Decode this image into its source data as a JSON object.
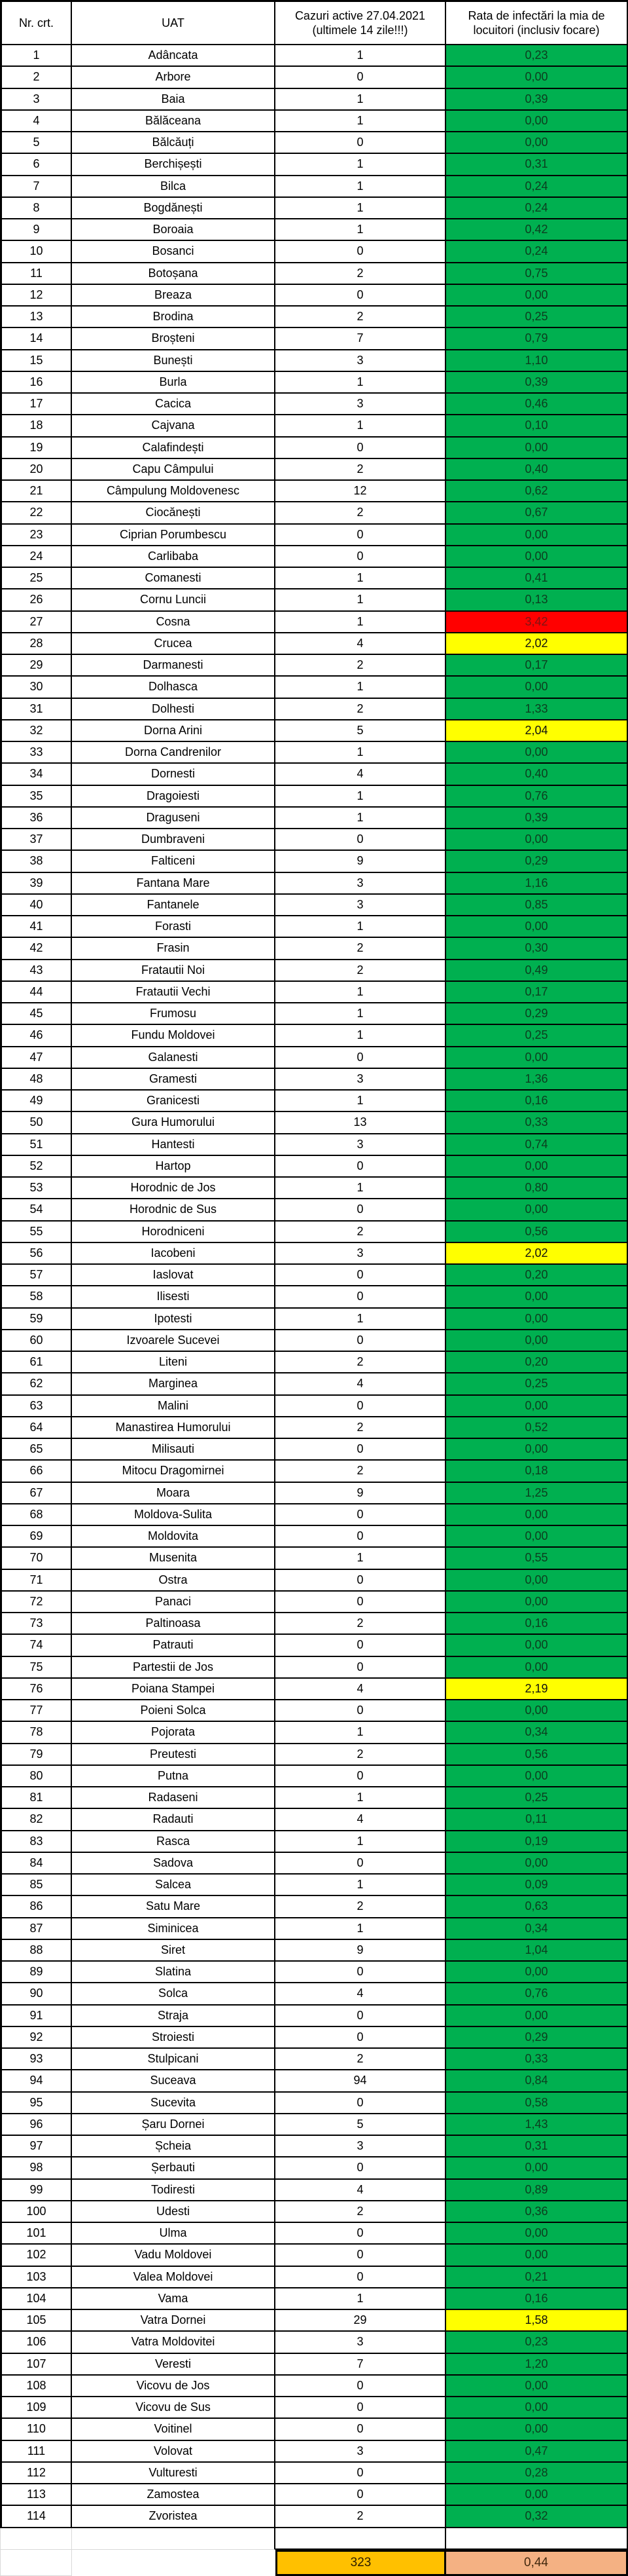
{
  "table": {
    "headers": {
      "nr": "Nr. crt.",
      "uat": "UAT",
      "cases": "Cazuri active 27.04.2021 (ultimele 14 zile!!!)",
      "rate": "Rata de infectări la mia de locuitori (inclusiv focare)"
    },
    "footer": {
      "total_cases": "323",
      "total_rate": "0,44"
    }
  },
  "colors": {
    "green_bg": "#00B050",
    "green_text": "#0c3d1f",
    "yellow_bg": "#FFFF00",
    "yellow_text": "#111111",
    "red_bg": "#FF0000",
    "red_text": "#7d1414",
    "orange_bg": "#FFC000",
    "orange_text": "#2b1d00",
    "salmon_bg": "#F4B183",
    "salmon_text": "#42280e"
  },
  "rows": [
    {
      "nr": "1",
      "uat": "Adâncata",
      "cases": "1",
      "rate": "0,23",
      "status": "green"
    },
    {
      "nr": "2",
      "uat": "Arbore",
      "cases": "0",
      "rate": "0,00",
      "status": "green"
    },
    {
      "nr": "3",
      "uat": "Baia",
      "cases": "1",
      "rate": "0,39",
      "status": "green"
    },
    {
      "nr": "4",
      "uat": "Bălăceana",
      "cases": "1",
      "rate": "0,00",
      "status": "green"
    },
    {
      "nr": "5",
      "uat": "Bălcăuți",
      "cases": "0",
      "rate": "0,00",
      "status": "green"
    },
    {
      "nr": "6",
      "uat": "Berchișești",
      "cases": "1",
      "rate": "0,31",
      "status": "green"
    },
    {
      "nr": "7",
      "uat": "Bilca",
      "cases": "1",
      "rate": "0,24",
      "status": "green"
    },
    {
      "nr": "8",
      "uat": "Bogdănești",
      "cases": "1",
      "rate": "0,24",
      "status": "green"
    },
    {
      "nr": "9",
      "uat": "Boroaia",
      "cases": "1",
      "rate": "0,42",
      "status": "green"
    },
    {
      "nr": "10",
      "uat": "Bosanci",
      "cases": "0",
      "rate": "0,24",
      "status": "green"
    },
    {
      "nr": "11",
      "uat": "Botoșana",
      "cases": "2",
      "rate": "0,75",
      "status": "green"
    },
    {
      "nr": "12",
      "uat": "Breaza",
      "cases": "0",
      "rate": "0,00",
      "status": "green"
    },
    {
      "nr": "13",
      "uat": "Brodina",
      "cases": "2",
      "rate": "0,25",
      "status": "green"
    },
    {
      "nr": "14",
      "uat": "Broșteni",
      "cases": "7",
      "rate": "0,79",
      "status": "green"
    },
    {
      "nr": "15",
      "uat": "Bunești",
      "cases": "3",
      "rate": "1,10",
      "status": "green"
    },
    {
      "nr": "16",
      "uat": "Burla",
      "cases": "1",
      "rate": "0,39",
      "status": "green"
    },
    {
      "nr": "17",
      "uat": "Cacica",
      "cases": "3",
      "rate": "0,46",
      "status": "green"
    },
    {
      "nr": "18",
      "uat": "Cajvana",
      "cases": "1",
      "rate": "0,10",
      "status": "green"
    },
    {
      "nr": "19",
      "uat": "Calafindești",
      "cases": "0",
      "rate": "0,00",
      "status": "green"
    },
    {
      "nr": "20",
      "uat": "Capu Câmpului",
      "cases": "2",
      "rate": "0,40",
      "status": "green"
    },
    {
      "nr": "21",
      "uat": "Câmpulung Moldovenesc",
      "cases": "12",
      "rate": "0,62",
      "status": "green"
    },
    {
      "nr": "22",
      "uat": "Ciocănești",
      "cases": "2",
      "rate": "0,67",
      "status": "green"
    },
    {
      "nr": "23",
      "uat": "Ciprian Porumbescu",
      "cases": "0",
      "rate": "0,00",
      "status": "green"
    },
    {
      "nr": "24",
      "uat": "Carlibaba",
      "cases": "0",
      "rate": "0,00",
      "status": "green"
    },
    {
      "nr": "25",
      "uat": "Comanesti",
      "cases": "1",
      "rate": "0,41",
      "status": "green"
    },
    {
      "nr": "26",
      "uat": "Cornu Luncii",
      "cases": "1",
      "rate": "0,13",
      "status": "green"
    },
    {
      "nr": "27",
      "uat": "Cosna",
      "cases": "1",
      "rate": "3,42",
      "status": "red"
    },
    {
      "nr": "28",
      "uat": "Crucea",
      "cases": "4",
      "rate": "2,02",
      "status": "yellow"
    },
    {
      "nr": "29",
      "uat": "Darmanesti",
      "cases": "2",
      "rate": "0,17",
      "status": "green"
    },
    {
      "nr": "30",
      "uat": "Dolhasca",
      "cases": "1",
      "rate": "0,00",
      "status": "green"
    },
    {
      "nr": "31",
      "uat": "Dolhesti",
      "cases": "2",
      "rate": "1,33",
      "status": "green"
    },
    {
      "nr": "32",
      "uat": "Dorna Arini",
      "cases": "5",
      "rate": "2,04",
      "status": "yellow"
    },
    {
      "nr": "33",
      "uat": "Dorna Candrenilor",
      "cases": "1",
      "rate": "0,00",
      "status": "green"
    },
    {
      "nr": "34",
      "uat": "Dornesti",
      "cases": "4",
      "rate": "0,40",
      "status": "green"
    },
    {
      "nr": "35",
      "uat": "Dragoiesti",
      "cases": "1",
      "rate": "0,76",
      "status": "green"
    },
    {
      "nr": "36",
      "uat": "Draguseni",
      "cases": "1",
      "rate": "0,39",
      "status": "green"
    },
    {
      "nr": "37",
      "uat": "Dumbraveni",
      "cases": "0",
      "rate": "0,00",
      "status": "green"
    },
    {
      "nr": "38",
      "uat": "Falticeni",
      "cases": "9",
      "rate": "0,29",
      "status": "green"
    },
    {
      "nr": "39",
      "uat": "Fantana Mare",
      "cases": "3",
      "rate": "1,16",
      "status": "green"
    },
    {
      "nr": "40",
      "uat": "Fantanele",
      "cases": "3",
      "rate": "0,85",
      "status": "green"
    },
    {
      "nr": "41",
      "uat": "Forasti",
      "cases": "1",
      "rate": "0,00",
      "status": "green"
    },
    {
      "nr": "42",
      "uat": "Frasin",
      "cases": "2",
      "rate": "0,30",
      "status": "green"
    },
    {
      "nr": "43",
      "uat": "Fratautii Noi",
      "cases": "2",
      "rate": "0,49",
      "status": "green"
    },
    {
      "nr": "44",
      "uat": "Fratautii Vechi",
      "cases": "1",
      "rate": "0,17",
      "status": "green"
    },
    {
      "nr": "45",
      "uat": "Frumosu",
      "cases": "1",
      "rate": "0,29",
      "status": "green"
    },
    {
      "nr": "46",
      "uat": "Fundu Moldovei",
      "cases": "1",
      "rate": "0,25",
      "status": "green"
    },
    {
      "nr": "47",
      "uat": "Galanesti",
      "cases": "0",
      "rate": "0,00",
      "status": "green"
    },
    {
      "nr": "48",
      "uat": "Gramesti",
      "cases": "3",
      "rate": "1,36",
      "status": "green"
    },
    {
      "nr": "49",
      "uat": "Granicesti",
      "cases": "1",
      "rate": "0,16",
      "status": "green"
    },
    {
      "nr": "50",
      "uat": "Gura Humorului",
      "cases": "13",
      "rate": "0,33",
      "status": "green"
    },
    {
      "nr": "51",
      "uat": "Hantesti",
      "cases": "3",
      "rate": "0,74",
      "status": "green"
    },
    {
      "nr": "52",
      "uat": "Hartop",
      "cases": "0",
      "rate": "0,00",
      "status": "green"
    },
    {
      "nr": "53",
      "uat": "Horodnic de Jos",
      "cases": "1",
      "rate": "0,80",
      "status": "green"
    },
    {
      "nr": "54",
      "uat": "Horodnic de Sus",
      "cases": "0",
      "rate": "0,00",
      "status": "green"
    },
    {
      "nr": "55",
      "uat": "Horodniceni",
      "cases": "2",
      "rate": "0,56",
      "status": "green"
    },
    {
      "nr": "56",
      "uat": "Iacobeni",
      "cases": "3",
      "rate": "2,02",
      "status": "yellow"
    },
    {
      "nr": "57",
      "uat": "Iaslovat",
      "cases": "0",
      "rate": "0,20",
      "status": "green"
    },
    {
      "nr": "58",
      "uat": "Ilisesti",
      "cases": "0",
      "rate": "0,00",
      "status": "green"
    },
    {
      "nr": "59",
      "uat": "Ipotesti",
      "cases": "1",
      "rate": "0,00",
      "status": "green"
    },
    {
      "nr": "60",
      "uat": "Izvoarele Sucevei",
      "cases": "0",
      "rate": "0,00",
      "status": "green"
    },
    {
      "nr": "61",
      "uat": "Liteni",
      "cases": "2",
      "rate": "0,20",
      "status": "green"
    },
    {
      "nr": "62",
      "uat": "Marginea",
      "cases": "4",
      "rate": "0,25",
      "status": "green"
    },
    {
      "nr": "63",
      "uat": "Malini",
      "cases": "0",
      "rate": "0,00",
      "status": "green"
    },
    {
      "nr": "64",
      "uat": "Manastirea Humorului",
      "cases": "2",
      "rate": "0,52",
      "status": "green"
    },
    {
      "nr": "65",
      "uat": "Milisauti",
      "cases": "0",
      "rate": "0,00",
      "status": "green"
    },
    {
      "nr": "66",
      "uat": "Mitocu Dragomirnei",
      "cases": "2",
      "rate": "0,18",
      "status": "green"
    },
    {
      "nr": "67",
      "uat": "Moara",
      "cases": "9",
      "rate": "1,25",
      "status": "green"
    },
    {
      "nr": "68",
      "uat": "Moldova-Sulita",
      "cases": "0",
      "rate": "0,00",
      "status": "green"
    },
    {
      "nr": "69",
      "uat": "Moldovita",
      "cases": "0",
      "rate": "0,00",
      "status": "green"
    },
    {
      "nr": "70",
      "uat": "Musenita",
      "cases": "1",
      "rate": "0,55",
      "status": "green"
    },
    {
      "nr": "71",
      "uat": "Ostra",
      "cases": "0",
      "rate": "0,00",
      "status": "green"
    },
    {
      "nr": "72",
      "uat": "Panaci",
      "cases": "0",
      "rate": "0,00",
      "status": "green"
    },
    {
      "nr": "73",
      "uat": "Paltinoasa",
      "cases": "2",
      "rate": "0,16",
      "status": "green"
    },
    {
      "nr": "74",
      "uat": "Patrauti",
      "cases": "0",
      "rate": "0,00",
      "status": "green"
    },
    {
      "nr": "75",
      "uat": "Partestii de Jos",
      "cases": "0",
      "rate": "0,00",
      "status": "green"
    },
    {
      "nr": "76",
      "uat": "Poiana Stampei",
      "cases": "4",
      "rate": "2,19",
      "status": "yellow"
    },
    {
      "nr": "77",
      "uat": "Poieni Solca",
      "cases": "0",
      "rate": "0,00",
      "status": "green"
    },
    {
      "nr": "78",
      "uat": "Pojorata",
      "cases": "1",
      "rate": "0,34",
      "status": "green"
    },
    {
      "nr": "79",
      "uat": "Preutesti",
      "cases": "2",
      "rate": "0,56",
      "status": "green"
    },
    {
      "nr": "80",
      "uat": "Putna",
      "cases": "0",
      "rate": "0,00",
      "status": "green"
    },
    {
      "nr": "81",
      "uat": "Radaseni",
      "cases": "1",
      "rate": "0,25",
      "status": "green"
    },
    {
      "nr": "82",
      "uat": "Radauti",
      "cases": "4",
      "rate": "0,11",
      "status": "green"
    },
    {
      "nr": "83",
      "uat": "Rasca",
      "cases": "1",
      "rate": "0,19",
      "status": "green"
    },
    {
      "nr": "84",
      "uat": "Sadova",
      "cases": "0",
      "rate": "0,00",
      "status": "green"
    },
    {
      "nr": "85",
      "uat": "Salcea",
      "cases": "1",
      "rate": "0,09",
      "status": "green"
    },
    {
      "nr": "86",
      "uat": "Satu Mare",
      "cases": "2",
      "rate": "0,63",
      "status": "green"
    },
    {
      "nr": "87",
      "uat": "Siminicea",
      "cases": "1",
      "rate": "0,34",
      "status": "green"
    },
    {
      "nr": "88",
      "uat": "Siret",
      "cases": "9",
      "rate": "1,04",
      "status": "green"
    },
    {
      "nr": "89",
      "uat": "Slatina",
      "cases": "0",
      "rate": "0,00",
      "status": "green"
    },
    {
      "nr": "90",
      "uat": "Solca",
      "cases": "4",
      "rate": "0,76",
      "status": "green"
    },
    {
      "nr": "91",
      "uat": "Straja",
      "cases": "0",
      "rate": "0,00",
      "status": "green"
    },
    {
      "nr": "92",
      "uat": "Stroiesti",
      "cases": "0",
      "rate": "0,29",
      "status": "green"
    },
    {
      "nr": "93",
      "uat": "Stulpicani",
      "cases": "2",
      "rate": "0,33",
      "status": "green"
    },
    {
      "nr": "94",
      "uat": "Suceava",
      "cases": "94",
      "rate": "0,84",
      "status": "green"
    },
    {
      "nr": "95",
      "uat": "Sucevita",
      "cases": "0",
      "rate": "0,58",
      "status": "green"
    },
    {
      "nr": "96",
      "uat": "Șaru Dornei",
      "cases": "5",
      "rate": "1,43",
      "status": "green"
    },
    {
      "nr": "97",
      "uat": "Șcheia",
      "cases": "3",
      "rate": "0,31",
      "status": "green"
    },
    {
      "nr": "98",
      "uat": "Șerbauti",
      "cases": "0",
      "rate": "0,00",
      "status": "green"
    },
    {
      "nr": "99",
      "uat": "Todiresti",
      "cases": "4",
      "rate": "0,89",
      "status": "green"
    },
    {
      "nr": "100",
      "uat": "Udesti",
      "cases": "2",
      "rate": "0,36",
      "status": "green"
    },
    {
      "nr": "101",
      "uat": "Ulma",
      "cases": "0",
      "rate": "0,00",
      "status": "green"
    },
    {
      "nr": "102",
      "uat": "Vadu Moldovei",
      "cases": "0",
      "rate": "0,00",
      "status": "green"
    },
    {
      "nr": "103",
      "uat": "Valea Moldovei",
      "cases": "0",
      "rate": "0,21",
      "status": "green"
    },
    {
      "nr": "104",
      "uat": "Vama",
      "cases": "1",
      "rate": "0,16",
      "status": "green"
    },
    {
      "nr": "105",
      "uat": "Vatra Dornei",
      "cases": "29",
      "rate": "1,58",
      "status": "yellow"
    },
    {
      "nr": "106",
      "uat": "Vatra Moldovitei",
      "cases": "3",
      "rate": "0,23",
      "status": "green"
    },
    {
      "nr": "107",
      "uat": "Veresti",
      "cases": "7",
      "rate": "1,20",
      "status": "green"
    },
    {
      "nr": "108",
      "uat": "Vicovu de Jos",
      "cases": "0",
      "rate": "0,00",
      "status": "green"
    },
    {
      "nr": "109",
      "uat": "Vicovu de Sus",
      "cases": "0",
      "rate": "0,00",
      "status": "green"
    },
    {
      "nr": "110",
      "uat": "Voitinel",
      "cases": "0",
      "rate": "0,00",
      "status": "green"
    },
    {
      "nr": "111",
      "uat": "Volovat",
      "cases": "3",
      "rate": "0,47",
      "status": "green"
    },
    {
      "nr": "112",
      "uat": "Vulturesti",
      "cases": "0",
      "rate": "0,28",
      "status": "green"
    },
    {
      "nr": "113",
      "uat": "Zamostea",
      "cases": "0",
      "rate": "0,00",
      "status": "green"
    },
    {
      "nr": "114",
      "uat": "Zvoristea",
      "cases": "2",
      "rate": "0,32",
      "status": "green"
    }
  ]
}
